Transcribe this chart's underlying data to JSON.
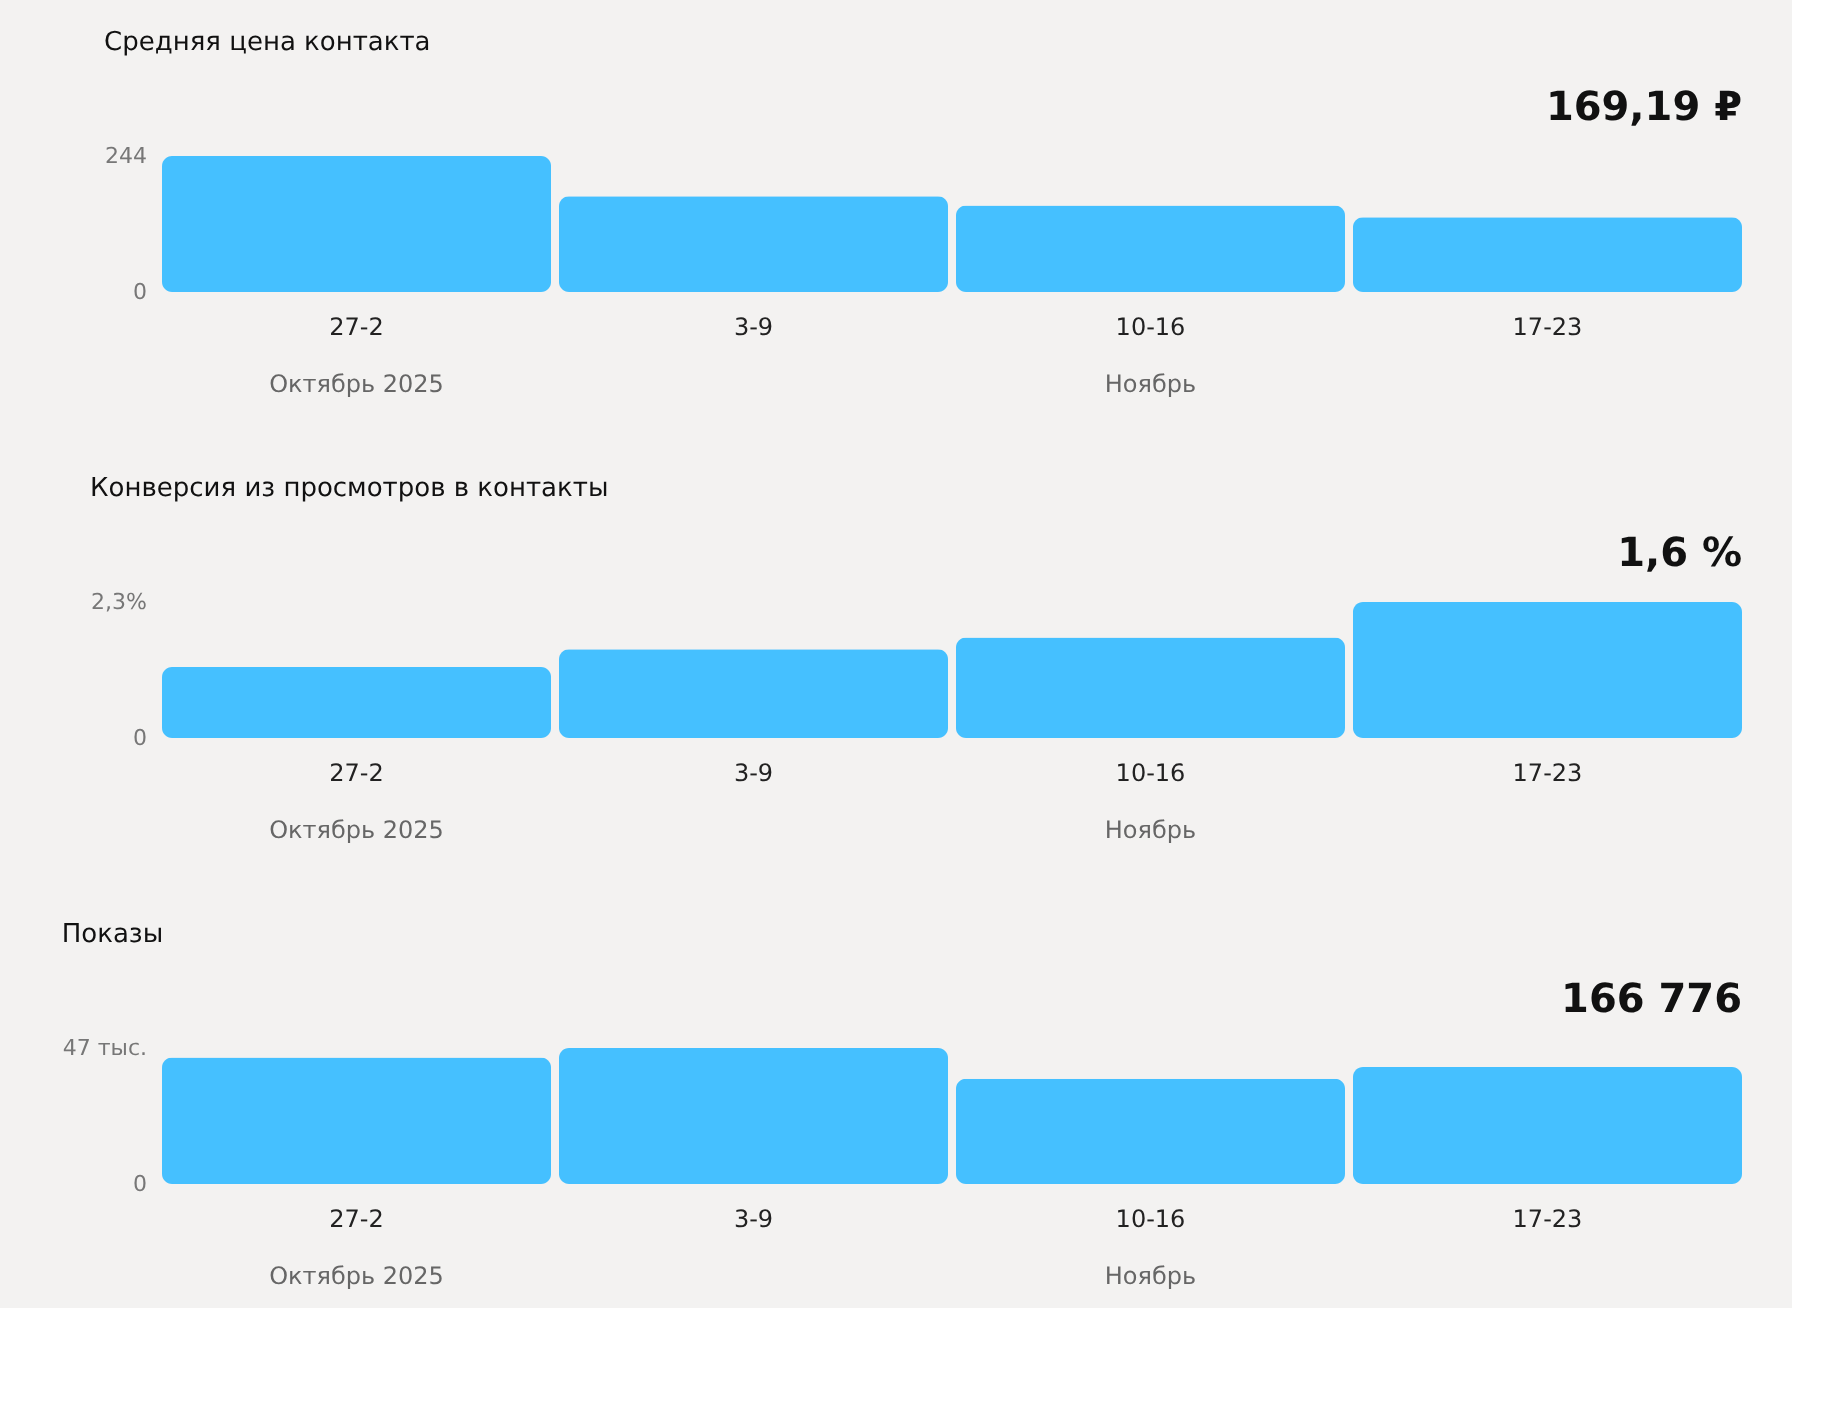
{
  "chart_data": [
    {
      "type": "bar",
      "title": "Средняя цена контакта",
      "categories": [
        "27-2",
        "3-9",
        "10-16",
        "17-23"
      ],
      "values": [
        244,
        172,
        155,
        134
      ],
      "color": "#45c0ff",
      "ylim": [
        0,
        244
      ],
      "yticks": [
        0,
        244
      ],
      "grid": false,
      "annotations": [
        "169,19 ₽",
        "Октябрь 2025",
        "Ноябрь"
      ]
    },
    {
      "type": "bar",
      "title": "Конверсия из просмотров в контакты",
      "categories": [
        "27-2",
        "3-9",
        "10-16",
        "17-23"
      ],
      "values": [
        1.2,
        1.5,
        1.7,
        2.3
      ],
      "color": "#45c0ff",
      "ylim": [
        0,
        2.3
      ],
      "yticks": [
        0,
        {
          "value": 2.3,
          "label": "2,3%"
        }
      ],
      "grid": false,
      "annotations": [
        "1,6 %",
        "Октябрь 2025",
        "Ноябрь"
      ]
    },
    {
      "type": "bar",
      "title": "Показы",
      "categories": [
        "27-2",
        "3-9",
        "10-16",
        "17-23"
      ],
      "values": [
        43.7,
        47,
        36.4,
        40.4
      ],
      "color": "#45c0ff",
      "ylim": [
        0,
        47
      ],
      "yticks": [
        0,
        {
          "value": 47,
          "label": "47 тыс."
        }
      ],
      "grid": false,
      "annotations": [
        "166 776",
        "Октябрь 2025",
        "Ноябрь"
      ]
    }
  ]
}
